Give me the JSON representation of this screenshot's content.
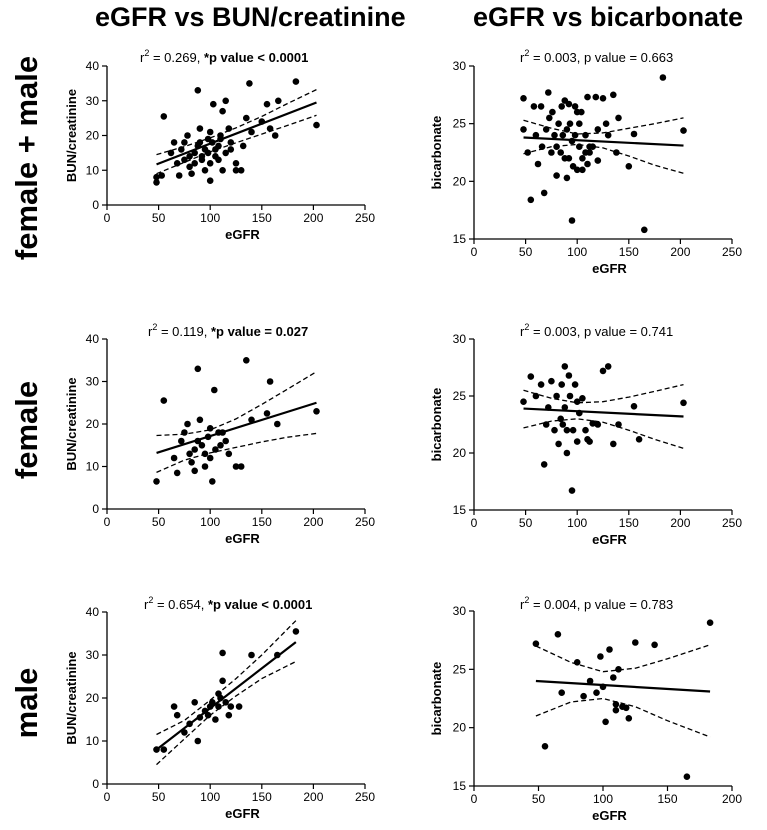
{
  "column_titles": [
    "eGFR vs BUN/creatinine",
    "eGFR vs bicarbonate"
  ],
  "row_titles": [
    "female + male",
    "female",
    "male"
  ],
  "chart_data": [
    {
      "id": "bun-all",
      "type": "scatter",
      "xlabel": "eGFR",
      "ylabel": "BUN/creatinine",
      "xlim": [
        0,
        250
      ],
      "xticks": [
        0,
        50,
        100,
        150,
        200,
        250
      ],
      "ylim": [
        0,
        40
      ],
      "yticks": [
        0,
        10,
        20,
        30,
        40
      ],
      "stat": {
        "r2_label": "r",
        "r2_sup": "2",
        "r2_value": " = 0.269, ",
        "p_label": "*p value < 0.0001",
        "p_bold": true
      },
      "fit": {
        "x": [
          48,
          203
        ],
        "y": [
          11.7,
          29.5
        ]
      },
      "ci_upper": {
        "x": [
          48,
          75,
          100,
          125,
          150,
          175,
          203
        ],
        "y": [
          14.5,
          16.8,
          19.3,
          22.2,
          25.5,
          29.2,
          33.2
        ]
      },
      "ci_lower": {
        "x": [
          48,
          75,
          100,
          125,
          150,
          175,
          203
        ],
        "y": [
          9,
          12.3,
          15.3,
          17.9,
          20.4,
          22.9,
          25.8
        ]
      },
      "points": [
        [
          48,
          8
        ],
        [
          48,
          6.5
        ],
        [
          53,
          8.5
        ],
        [
          55,
          25.5
        ],
        [
          62,
          15
        ],
        [
          65,
          18
        ],
        [
          68,
          12
        ],
        [
          70,
          8.5
        ],
        [
          72,
          16
        ],
        [
          75,
          18
        ],
        [
          75,
          13
        ],
        [
          78,
          20
        ],
        [
          80,
          11
        ],
        [
          80,
          14
        ],
        [
          82,
          9
        ],
        [
          85,
          15
        ],
        [
          85,
          12
        ],
        [
          88,
          17
        ],
        [
          88,
          33
        ],
        [
          90,
          22
        ],
        [
          90,
          18
        ],
        [
          92,
          14
        ],
        [
          92,
          13
        ],
        [
          95,
          16
        ],
        [
          95,
          10
        ],
        [
          98,
          19
        ],
        [
          98,
          15
        ],
        [
          100,
          21
        ],
        [
          100,
          12
        ],
        [
          100,
          7
        ],
        [
          102,
          18
        ],
        [
          103,
          29
        ],
        [
          105,
          16
        ],
        [
          105,
          14
        ],
        [
          108,
          17
        ],
        [
          108,
          13
        ],
        [
          110,
          20
        ],
        [
          110,
          19
        ],
        [
          112,
          27
        ],
        [
          112,
          10
        ],
        [
          115,
          30
        ],
        [
          115,
          15
        ],
        [
          118,
          22
        ],
        [
          120,
          18
        ],
        [
          120,
          16
        ],
        [
          125,
          12
        ],
        [
          125,
          10
        ],
        [
          130,
          10
        ],
        [
          132,
          17
        ],
        [
          135,
          25
        ],
        [
          138,
          35
        ],
        [
          140,
          21
        ],
        [
          150,
          24
        ],
        [
          155,
          29
        ],
        [
          158,
          22
        ],
        [
          163,
          20
        ],
        [
          166,
          30
        ],
        [
          183,
          35.5
        ],
        [
          203,
          23
        ]
      ]
    },
    {
      "id": "bic-all",
      "type": "scatter",
      "xlabel": "eGFR",
      "ylabel": "bicarbonate",
      "xlim": [
        0,
        250
      ],
      "xticks": [
        0,
        50,
        100,
        150,
        200,
        250
      ],
      "ylim": [
        15,
        30
      ],
      "yticks": [
        15,
        20,
        25,
        30
      ],
      "stat": {
        "r2_label": "r",
        "r2_sup": "2",
        "r2_value": " = 0.003, ",
        "p_label": "p value = 0.663",
        "p_bold": false
      },
      "fit": {
        "x": [
          48,
          203
        ],
        "y": [
          23.8,
          23.1
        ]
      },
      "ci_upper": {
        "x": [
          48,
          75,
          100,
          125,
          150,
          175,
          203
        ],
        "y": [
          25.3,
          24.6,
          24.1,
          24.2,
          24.6,
          25,
          25.5
        ]
      },
      "ci_lower": {
        "x": [
          48,
          75,
          100,
          125,
          150,
          175,
          203
        ],
        "y": [
          22.4,
          23,
          23.2,
          22.9,
          22.2,
          21.4,
          20.7
        ]
      },
      "points": [
        [
          48,
          27.2
        ],
        [
          48,
          24.5
        ],
        [
          52,
          22.5
        ],
        [
          55,
          18.4
        ],
        [
          58,
          26.5
        ],
        [
          60,
          24
        ],
        [
          62,
          21.5
        ],
        [
          65,
          26.5
        ],
        [
          66,
          23
        ],
        [
          68,
          19
        ],
        [
          70,
          24.5
        ],
        [
          72,
          27.7
        ],
        [
          73,
          25.5
        ],
        [
          75,
          22.5
        ],
        [
          76,
          26
        ],
        [
          78,
          24
        ],
        [
          80,
          23
        ],
        [
          80,
          20.5
        ],
        [
          82,
          25
        ],
        [
          84,
          22.5
        ],
        [
          85,
          26.5
        ],
        [
          86,
          24
        ],
        [
          88,
          27
        ],
        [
          88,
          22
        ],
        [
          90,
          24.5
        ],
        [
          90,
          20.3
        ],
        [
          92,
          26.7
        ],
        [
          92,
          22
        ],
        [
          93,
          25
        ],
        [
          95,
          16.6
        ],
        [
          95,
          23.5
        ],
        [
          96,
          21.3
        ],
        [
          98,
          26.5
        ],
        [
          98,
          24
        ],
        [
          100,
          26
        ],
        [
          100,
          21
        ],
        [
          102,
          25
        ],
        [
          102,
          23
        ],
        [
          104,
          26
        ],
        [
          105,
          22
        ],
        [
          105,
          21
        ],
        [
          108,
          24
        ],
        [
          108,
          22.5
        ],
        [
          110,
          27.3
        ],
        [
          110,
          21.5
        ],
        [
          112,
          23
        ],
        [
          112,
          22.5
        ],
        [
          115,
          23
        ],
        [
          118,
          27.3
        ],
        [
          120,
          24.5
        ],
        [
          120,
          21.8
        ],
        [
          125,
          27.2
        ],
        [
          128,
          25
        ],
        [
          130,
          24
        ],
        [
          135,
          27.5
        ],
        [
          138,
          22.5
        ],
        [
          140,
          25.5
        ],
        [
          150,
          21.3
        ],
        [
          155,
          24.1
        ],
        [
          165,
          15.8
        ],
        [
          183,
          29
        ],
        [
          203,
          24.4
        ]
      ]
    },
    {
      "id": "bun-female",
      "type": "scatter",
      "xlabel": "eGFR",
      "ylabel": "BUN/creatinine",
      "xlim": [
        0,
        250
      ],
      "xticks": [
        0,
        50,
        100,
        150,
        200,
        250
      ],
      "ylim": [
        0,
        40
      ],
      "yticks": [
        0,
        10,
        20,
        30,
        40
      ],
      "stat": {
        "r2_label": "r",
        "r2_sup": "2",
        "r2_value": " = 0.119, ",
        "p_label": "*p value = 0.027",
        "p_bold": true
      },
      "fit": {
        "x": [
          48,
          203
        ],
        "y": [
          13.2,
          25
        ]
      },
      "ci_upper": {
        "x": [
          48,
          75,
          100,
          125,
          150,
          175,
          203
        ],
        "y": [
          17.3,
          17.6,
          18.6,
          21.2,
          24.6,
          28.2,
          32.3
        ]
      },
      "ci_lower": {
        "x": [
          48,
          75,
          100,
          125,
          150,
          175,
          203
        ],
        "y": [
          8.6,
          11.5,
          13.2,
          14.5,
          15.8,
          16.9,
          17.8
        ]
      },
      "points": [
        [
          48,
          6.5
        ],
        [
          55,
          25.5
        ],
        [
          65,
          12
        ],
        [
          68,
          8.5
        ],
        [
          72,
          16
        ],
        [
          75,
          18
        ],
        [
          78,
          20
        ],
        [
          80,
          13
        ],
        [
          82,
          11
        ],
        [
          85,
          14
        ],
        [
          85,
          9
        ],
        [
          88,
          33
        ],
        [
          88,
          16
        ],
        [
          90,
          21
        ],
        [
          92,
          15
        ],
        [
          95,
          13
        ],
        [
          95,
          10
        ],
        [
          98,
          17
        ],
        [
          100,
          19
        ],
        [
          100,
          12
        ],
        [
          102,
          6.5
        ],
        [
          104,
          28
        ],
        [
          105,
          14
        ],
        [
          108,
          18
        ],
        [
          110,
          15
        ],
        [
          112,
          18
        ],
        [
          115,
          16
        ],
        [
          118,
          13
        ],
        [
          125,
          10
        ],
        [
          130,
          10
        ],
        [
          135,
          35
        ],
        [
          140,
          21
        ],
        [
          155,
          22.5
        ],
        [
          158,
          30
        ],
        [
          165,
          20
        ],
        [
          203,
          23
        ]
      ]
    },
    {
      "id": "bic-female",
      "type": "scatter",
      "xlabel": "eGFR",
      "ylabel": "bicarbonate",
      "xlim": [
        0,
        250
      ],
      "xticks": [
        0,
        50,
        100,
        150,
        200,
        250
      ],
      "ylim": [
        15,
        30
      ],
      "yticks": [
        15,
        20,
        25,
        30
      ],
      "stat": {
        "r2_label": "r",
        "r2_sup": "2",
        "r2_value": " = 0.003, ",
        "p_label": "p value = 0.741",
        "p_bold": false
      },
      "fit": {
        "x": [
          48,
          203
        ],
        "y": [
          23.9,
          23.2
        ]
      },
      "ci_upper": {
        "x": [
          48,
          75,
          100,
          125,
          150,
          175,
          203
        ],
        "y": [
          25.5,
          24.8,
          24.4,
          24.5,
          24.9,
          25.4,
          26
        ]
      },
      "ci_lower": {
        "x": [
          48,
          75,
          100,
          125,
          150,
          175,
          203
        ],
        "y": [
          22.2,
          22.8,
          23,
          22.7,
          22,
          21.2,
          20.4
        ]
      },
      "points": [
        [
          48,
          24.5
        ],
        [
          55,
          26.7
        ],
        [
          60,
          25
        ],
        [
          65,
          26
        ],
        [
          68,
          19
        ],
        [
          70,
          22.5
        ],
        [
          72,
          24
        ],
        [
          75,
          26.3
        ],
        [
          78,
          22
        ],
        [
          80,
          25
        ],
        [
          82,
          20.8
        ],
        [
          84,
          23
        ],
        [
          85,
          26
        ],
        [
          86,
          22.5
        ],
        [
          88,
          27.6
        ],
        [
          88,
          24
        ],
        [
          90,
          22
        ],
        [
          90,
          20
        ],
        [
          92,
          26.8
        ],
        [
          93,
          25
        ],
        [
          95,
          16.7
        ],
        [
          96,
          22
        ],
        [
          98,
          26
        ],
        [
          100,
          24.5
        ],
        [
          100,
          21
        ],
        [
          102,
          23.5
        ],
        [
          105,
          24.8
        ],
        [
          108,
          22
        ],
        [
          110,
          21.2
        ],
        [
          112,
          21
        ],
        [
          115,
          22.6
        ],
        [
          120,
          22.5
        ],
        [
          125,
          27.2
        ],
        [
          130,
          27.6
        ],
        [
          135,
          20.8
        ],
        [
          140,
          22.5
        ],
        [
          155,
          24.1
        ],
        [
          160,
          21.2
        ],
        [
          203,
          24.4
        ]
      ]
    },
    {
      "id": "bun-male",
      "type": "scatter",
      "xlabel": "eGFR",
      "ylabel": "BUN/creatinine",
      "xlim": [
        0,
        250
      ],
      "xticks": [
        0,
        50,
        100,
        150,
        200,
        250
      ],
      "ylim": [
        0,
        40
      ],
      "yticks": [
        0,
        10,
        20,
        30,
        40
      ],
      "stat": {
        "r2_label": "r",
        "r2_sup": "2",
        "r2_value": " = 0.654, ",
        "p_label": "*p value < 0.0001",
        "p_bold": true
      },
      "fit": {
        "x": [
          48,
          183
        ],
        "y": [
          8,
          33
        ]
      },
      "ci_upper": {
        "x": [
          48,
          75,
          100,
          125,
          150,
          183
        ],
        "y": [
          11.5,
          14.8,
          19.5,
          24.5,
          30,
          38
        ]
      },
      "ci_lower": {
        "x": [
          48,
          75,
          100,
          125,
          150,
          183
        ],
        "y": [
          4.5,
          10.5,
          16,
          20.5,
          24.5,
          28.5
        ]
      },
      "points": [
        [
          48,
          8
        ],
        [
          55,
          8
        ],
        [
          65,
          18
        ],
        [
          68,
          16
        ],
        [
          75,
          12
        ],
        [
          80,
          14
        ],
        [
          85,
          19
        ],
        [
          88,
          10
        ],
        [
          90,
          15.5
        ],
        [
          95,
          17
        ],
        [
          98,
          16
        ],
        [
          100,
          18
        ],
        [
          102,
          19
        ],
        [
          105,
          15
        ],
        [
          108,
          21
        ],
        [
          108,
          18
        ],
        [
          110,
          20
        ],
        [
          112,
          30.5
        ],
        [
          112,
          24
        ],
        [
          115,
          19
        ],
        [
          118,
          16
        ],
        [
          120,
          18
        ],
        [
          128,
          18
        ],
        [
          140,
          30
        ],
        [
          165,
          30
        ],
        [
          183,
          35.5
        ]
      ]
    },
    {
      "id": "bic-male",
      "type": "scatter",
      "xlabel": "eGFR",
      "ylabel": "bicarbonate",
      "xlim": [
        0,
        200
      ],
      "xticks": [
        0,
        50,
        100,
        150,
        200
      ],
      "ylim": [
        15,
        30
      ],
      "yticks": [
        15,
        20,
        25,
        30
      ],
      "stat": {
        "r2_label": "r",
        "r2_sup": "2",
        "r2_value": " = 0.004, ",
        "p_label": "p value = 0.783",
        "p_bold": false
      },
      "fit": {
        "x": [
          48,
          183
        ],
        "y": [
          24,
          23.1
        ]
      },
      "ci_upper": {
        "x": [
          48,
          75,
          100,
          125,
          150,
          183
        ],
        "y": [
          27,
          25.6,
          24.8,
          25.1,
          25.9,
          27.1
        ]
      },
      "ci_lower": {
        "x": [
          48,
          75,
          100,
          125,
          150,
          183
        ],
        "y": [
          21,
          22.2,
          22.5,
          21.8,
          20.6,
          19.2
        ]
      },
      "points": [
        [
          48,
          27.2
        ],
        [
          55,
          18.4
        ],
        [
          65,
          28
        ],
        [
          68,
          23
        ],
        [
          80,
          25.6
        ],
        [
          85,
          22.7
        ],
        [
          90,
          24
        ],
        [
          95,
          23
        ],
        [
          98,
          26.1
        ],
        [
          100,
          23.5
        ],
        [
          102,
          20.5
        ],
        [
          105,
          26.7
        ],
        [
          108,
          24.3
        ],
        [
          110,
          22
        ],
        [
          110,
          21.5
        ],
        [
          112,
          25
        ],
        [
          115,
          21.8
        ],
        [
          118,
          21.7
        ],
        [
          120,
          20.8
        ],
        [
          125,
          27.3
        ],
        [
          140,
          27.1
        ],
        [
          165,
          15.8
        ],
        [
          183,
          29
        ]
      ]
    }
  ]
}
